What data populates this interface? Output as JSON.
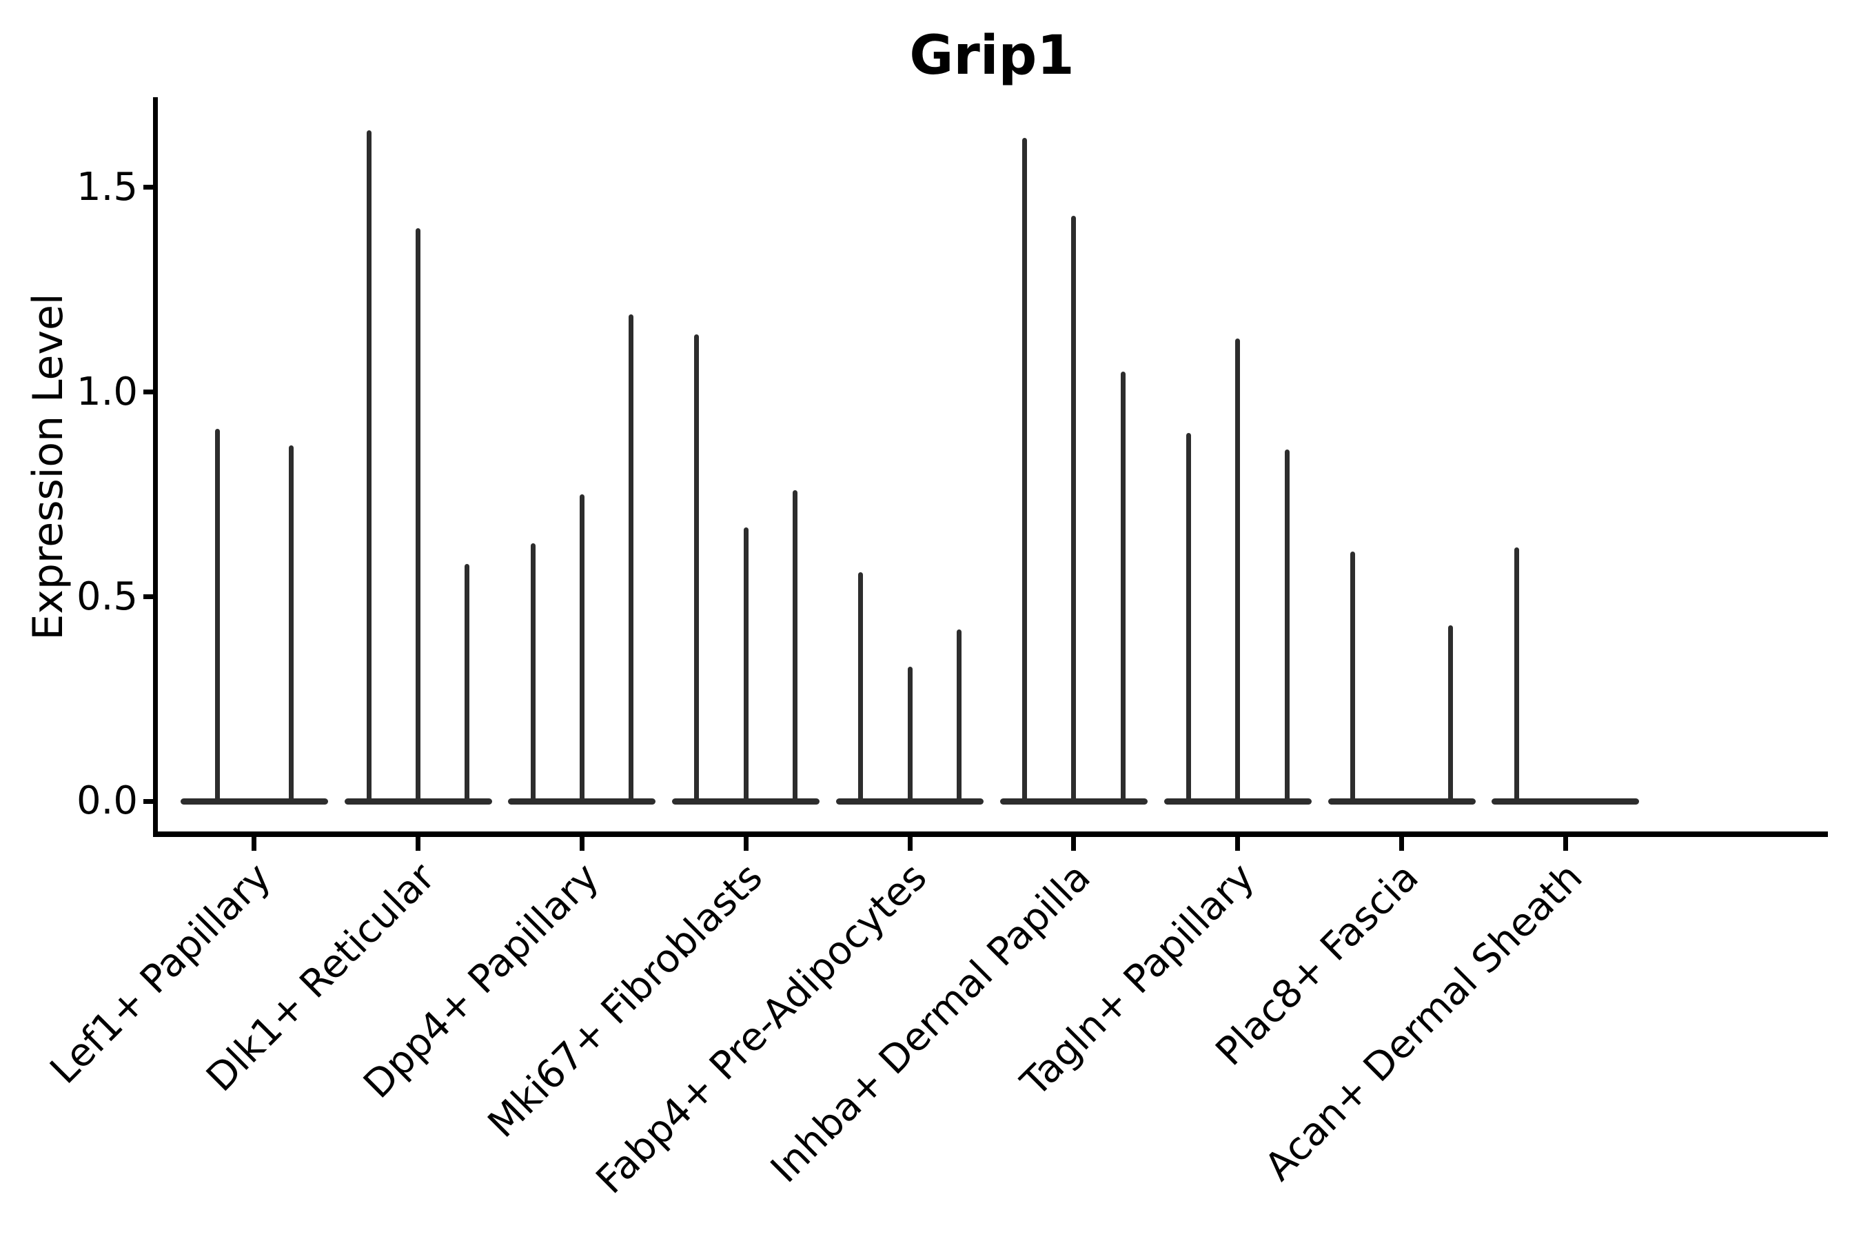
{
  "figure": {
    "background_color": "#ffffff",
    "axis_color": "#000000",
    "violin_color": "#2d2d2d"
  },
  "chart_data": {
    "type": "violin",
    "title": "Grip1",
    "xlabel": "",
    "ylabel": "Expression Level",
    "ylim": [
      -0.08,
      1.72
    ],
    "grid": false,
    "legend": "none",
    "orientation": "vertical",
    "description": "Split violin plot of Grip1 expression; each cell-type category shows 2-3 very thin dodged violins: a flat bulge at expression 0 with a thin spike rising to the max expression value.",
    "violin_slot_width_fraction": 0.9,
    "yticks": [
      {
        "value": 0.0,
        "label": "0.0"
      },
      {
        "value": 0.5,
        "label": "0.5"
      },
      {
        "value": 1.0,
        "label": "1.0"
      },
      {
        "value": 1.5,
        "label": "1.5"
      }
    ],
    "categories": [
      {
        "label": "Lef1+ Papillary",
        "split_violins": [
          {
            "offset": -0.225,
            "max_expression": 0.91
          },
          {
            "offset": 0.225,
            "max_expression": 0.87
          }
        ]
      },
      {
        "label": "Dlk1+ Reticular",
        "split_violins": [
          {
            "offset": -0.3,
            "max_expression": 1.64
          },
          {
            "offset": 0.0,
            "max_expression": 1.4
          },
          {
            "offset": 0.3,
            "max_expression": 0.58
          }
        ]
      },
      {
        "label": "Dpp4+ Papillary",
        "split_violins": [
          {
            "offset": -0.3,
            "max_expression": 0.63
          },
          {
            "offset": 0.0,
            "max_expression": 0.75
          },
          {
            "offset": 0.3,
            "max_expression": 1.19
          }
        ]
      },
      {
        "label": "Mki67+ Fibroblasts",
        "split_violins": [
          {
            "offset": -0.3,
            "max_expression": 1.14
          },
          {
            "offset": 0.0,
            "max_expression": 0.67
          },
          {
            "offset": 0.3,
            "max_expression": 0.76
          }
        ]
      },
      {
        "label": "Fabp4+ Pre-Adipocytes",
        "split_violins": [
          {
            "offset": -0.3,
            "max_expression": 0.56
          },
          {
            "offset": 0.0,
            "max_expression": 0.33
          },
          {
            "offset": 0.3,
            "max_expression": 0.42
          }
        ]
      },
      {
        "label": "Inhba+ Dermal Papilla",
        "split_violins": [
          {
            "offset": -0.3,
            "max_expression": 1.62
          },
          {
            "offset": 0.0,
            "max_expression": 1.43
          },
          {
            "offset": 0.3,
            "max_expression": 1.05
          }
        ]
      },
      {
        "label": "Tagln+ Papillary",
        "split_violins": [
          {
            "offset": -0.3,
            "max_expression": 0.9
          },
          {
            "offset": 0.0,
            "max_expression": 1.13
          },
          {
            "offset": 0.3,
            "max_expression": 0.86
          }
        ]
      },
      {
        "label": "Plac8+ Fascia",
        "split_violins": [
          {
            "offset": -0.3,
            "max_expression": 0.61
          },
          {
            "offset": 0.3,
            "max_expression": 0.43
          }
        ]
      },
      {
        "label": "Acan+ Dermal Sheath",
        "split_violins": [
          {
            "offset": -0.3,
            "max_expression": 0.62
          }
        ]
      }
    ]
  }
}
